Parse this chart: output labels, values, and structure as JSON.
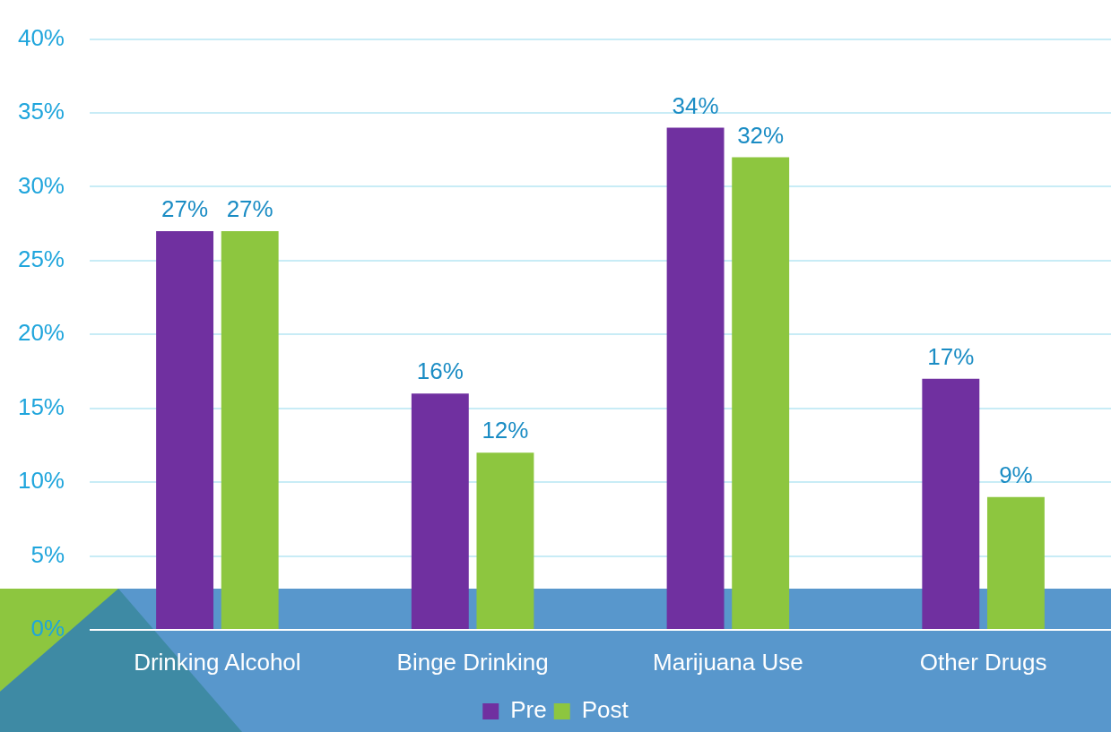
{
  "chart_data": {
    "type": "bar",
    "categories": [
      "Drinking Alcohol",
      "Binge Drinking",
      "Marijuana Use",
      "Other Drugs"
    ],
    "series": [
      {
        "name": "Pre",
        "color": "#7030a0",
        "values": [
          27,
          16,
          34,
          17
        ],
        "value_labels": [
          "27%",
          "16%",
          "34%",
          "17%"
        ]
      },
      {
        "name": "Post",
        "color": "#8dc63f",
        "values": [
          27,
          12,
          32,
          9
        ],
        "value_labels": [
          "27%",
          "12%",
          "32%",
          "9%"
        ]
      }
    ],
    "ylim": [
      0,
      40
    ],
    "yticks": [
      {
        "value": 0,
        "label": "0%"
      },
      {
        "value": 5,
        "label": "5%"
      },
      {
        "value": 10,
        "label": "10%"
      },
      {
        "value": 15,
        "label": "15%"
      },
      {
        "value": 20,
        "label": "20%"
      },
      {
        "value": 25,
        "label": "25%"
      },
      {
        "value": 30,
        "label": "30%"
      },
      {
        "value": 35,
        "label": "35%"
      },
      {
        "value": 40,
        "label": "40%"
      }
    ],
    "grid": "y",
    "legend": "bottom"
  }
}
